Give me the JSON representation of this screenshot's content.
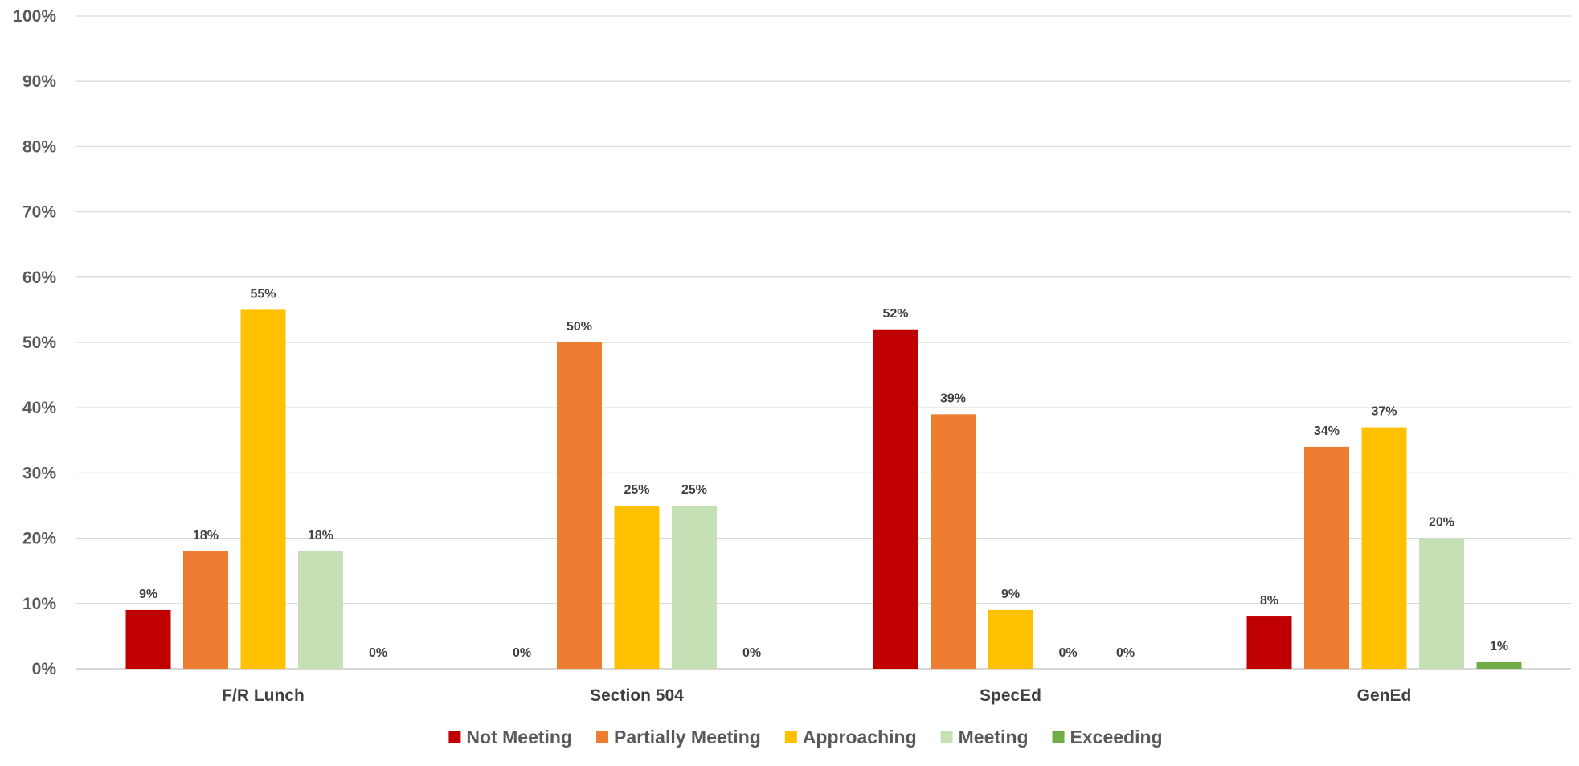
{
  "chart_data": {
    "type": "bar",
    "categories": [
      "F/R Lunch",
      "Section 504",
      "SpecEd",
      "GenEd"
    ],
    "series": [
      {
        "name": "Not Meeting",
        "color": "#c00000",
        "values": [
          9,
          0,
          52,
          8
        ],
        "labels": [
          "9%",
          "0%",
          "52%",
          "8%"
        ]
      },
      {
        "name": "Partially Meeting",
        "color": "#ed7d31",
        "values": [
          18,
          50,
          39,
          34
        ],
        "labels": [
          "18%",
          "50%",
          "39%",
          "34%"
        ]
      },
      {
        "name": "Approaching",
        "color": "#ffc000",
        "values": [
          55,
          25,
          9,
          37
        ],
        "labels": [
          "55%",
          "25%",
          "9%",
          "37%"
        ]
      },
      {
        "name": "Meeting",
        "color": "#c5e0b4",
        "values": [
          18,
          25,
          0,
          20
        ],
        "labels": [
          "18%",
          "25%",
          "0%",
          "20%"
        ]
      },
      {
        "name": "Exceeding",
        "color": "#70ad47",
        "values": [
          0,
          0,
          0,
          1
        ],
        "labels": [
          "0%",
          "0%",
          "0%",
          "1%"
        ]
      }
    ],
    "y_ticks": [
      "0%",
      "10%",
      "20%",
      "30%",
      "40%",
      "50%",
      "60%",
      "70%",
      "80%",
      "90%",
      "100%"
    ],
    "ylim": [
      0,
      100
    ],
    "grid": true,
    "legend_position": "bottom"
  }
}
